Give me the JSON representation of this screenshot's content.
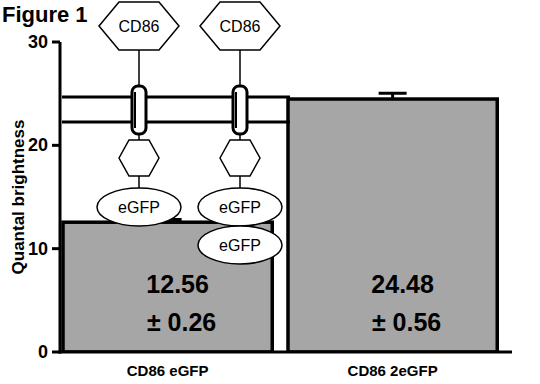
{
  "chart_data": {
    "type": "bar",
    "title": "Figure 1",
    "y_label": "Quantal brightness",
    "categories": [
      "CD86 eGFP",
      "CD86 2eGFP"
    ],
    "values": [
      12.56,
      24.48
    ],
    "errors": [
      0.26,
      0.56
    ],
    "error_labels": [
      "± 0.26",
      "± 0.56"
    ],
    "data_labels": true,
    "color": "#a6a6a6",
    "ylim": [
      0,
      30
    ],
    "yticks": [
      0,
      10,
      20,
      30
    ],
    "grid": false,
    "annotations": [
      [
        "CD86",
        "eGFP"
      ],
      [
        "CD86",
        "eGFP",
        "eGFP"
      ]
    ]
  }
}
